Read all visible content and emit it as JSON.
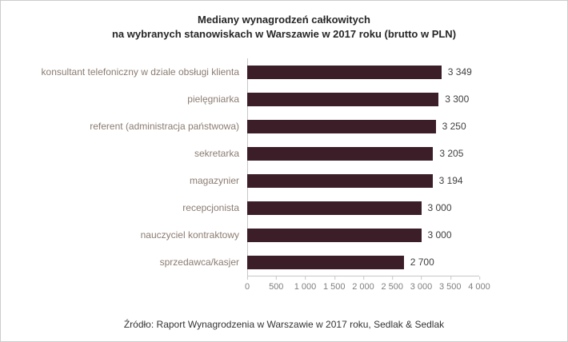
{
  "title": {
    "line1": "Mediany wynagrodzeń całkowitych",
    "line2": "na wybranych stanowiskach w Warszawie w 2017 roku (brutto w PLN)"
  },
  "source": "Źródło: Raport Wynagrodzenia w Warszawie w 2017 roku, Sedlak & Sedlak",
  "colors": {
    "bar": "#3c1e29",
    "category_label": "#8b7c72",
    "value_label": "#3f3f3f",
    "axis_line": "#c6c6c6",
    "tick_label": "#7f7f7f",
    "title": "#262626",
    "frame_border": "#cccccc"
  },
  "chart_data": {
    "type": "bar",
    "orientation": "horizontal",
    "title": "Mediany wynagrodzeń całkowitych na wybranych stanowiskach w Warszawie w 2017 roku (brutto w PLN)",
    "categories": [
      "konsultant telefoniczny w dziale obsługi klienta",
      "pielęgniarka",
      "referent (administracja państwowa)",
      "sekretarka",
      "magazynier",
      "recepcjonista",
      "nauczyciel kontraktowy",
      "sprzedawca/kasjer"
    ],
    "values": [
      3349,
      3300,
      3250,
      3205,
      3194,
      3000,
      3000,
      2700
    ],
    "value_labels": [
      "3 349",
      "3 300",
      "3 250",
      "3 205",
      "3 194",
      "3 000",
      "3 000",
      "2 700"
    ],
    "xlim": [
      0,
      4000
    ],
    "x_ticks": [
      "0",
      "500",
      "1 000",
      "1 500",
      "2 000",
      "2 500",
      "3 000",
      "3 500",
      "4 000"
    ],
    "grid": false,
    "legend": false,
    "source": "Źródło: Raport Wynagrodzenia w Warszawie w 2017 roku, Sedlak & Sedlak"
  }
}
